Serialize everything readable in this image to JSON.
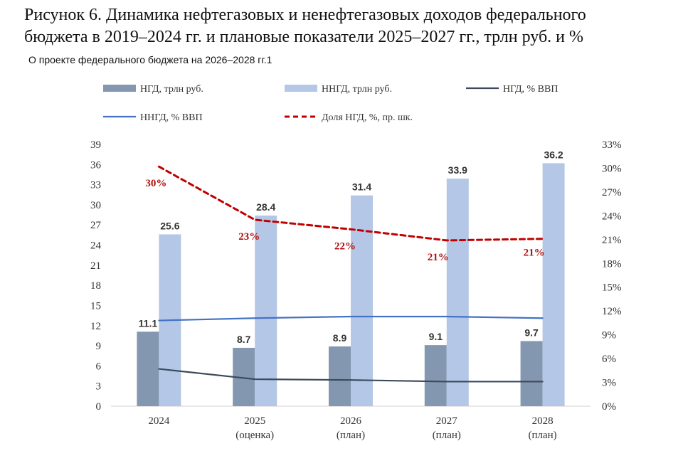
{
  "title_line1": "Рисунок 6. Динамика нефтегазовых и ненефтегазовых доходов федерального",
  "title_line2": "бюджета в 2019–2024 гг. и плановые показатели 2025–2027 гг., трлн руб. и %",
  "subtitle": "О проекте федерального бюджета на 2026–2028 гг.1",
  "chart_data": {
    "type": "bar",
    "categories": [
      [
        "2024",
        ""
      ],
      [
        "2025",
        "(оценка)"
      ],
      [
        "2026",
        "(план)"
      ],
      [
        "2027",
        "(план)"
      ],
      [
        "2028",
        "(план)"
      ]
    ],
    "ylim": [
      0,
      39
    ],
    "yticks": [
      0,
      3,
      6,
      9,
      12,
      15,
      18,
      21,
      24,
      27,
      30,
      33,
      36,
      39
    ],
    "y2lim": [
      0,
      33
    ],
    "y2ticks": [
      "0%",
      "3%",
      "6%",
      "9%",
      "12%",
      "15%",
      "18%",
      "21%",
      "24%",
      "27%",
      "30%",
      "33%"
    ],
    "series": [
      {
        "name": "НГД, трлн руб.",
        "kind": "bar",
        "axis": "left",
        "color": "#8497b0",
        "values": [
          11.1,
          8.7,
          8.9,
          9.1,
          9.7
        ],
        "labels": [
          "11.1",
          "8.7",
          "8.9",
          "9.1",
          "9.7"
        ]
      },
      {
        "name": "ННГД, трлн руб.",
        "kind": "bar",
        "axis": "left",
        "color": "#b4c7e7",
        "values": [
          25.6,
          28.4,
          31.4,
          33.9,
          36.2
        ],
        "labels": [
          "25.6",
          "28.4",
          "31.4",
          "33.9",
          "36.2"
        ]
      },
      {
        "name": "НГД, % ВВП",
        "kind": "line",
        "axis": "right",
        "color": "#3b4a5c",
        "values": [
          4.7,
          3.4,
          3.3,
          3.1,
          3.1
        ]
      },
      {
        "name": "ННГД, % ВВП",
        "kind": "line",
        "axis": "right",
        "color": "#4472c4",
        "values": [
          10.8,
          11.1,
          11.3,
          11.3,
          11.1
        ]
      },
      {
        "name": "Доля НГД, %, пр. шк.",
        "kind": "dashed-line",
        "axis": "right",
        "color": "#c00000",
        "values": [
          30.2,
          23.5,
          22.3,
          20.9,
          21.1
        ],
        "labels": [
          "30%",
          "23%",
          "22%",
          "21%",
          "21%"
        ]
      }
    ]
  }
}
